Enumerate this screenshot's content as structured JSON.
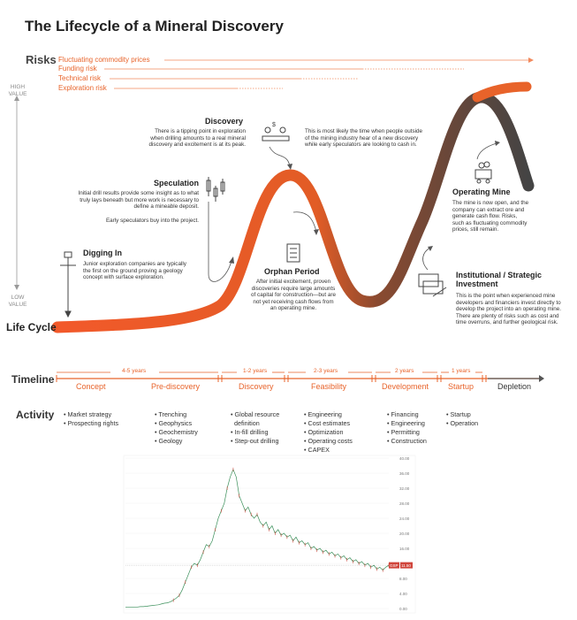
{
  "title": "The Lifecycle of a Mineral Discovery",
  "risks": {
    "label": "Risks",
    "items": [
      "Fluctuating commodity prices",
      "Funding risk",
      "Technical risk",
      "Exploration risk"
    ]
  },
  "axis": {
    "high_line1": "HIGH",
    "high_line2": "VALUE",
    "low_line1": "LOW",
    "low_line2": "VALUE"
  },
  "lifecycle_label": "Life Cycle",
  "stages": {
    "digging_in": {
      "title": "Digging In",
      "body": "Junior exploration companies are typically the first on the ground proving a geology concept with surface exploration."
    },
    "speculation": {
      "title": "Speculation",
      "body1": "Initial drill results provide some insight as to what truly lays beneath but more work is necessary to define a mineable deposit.",
      "body2": "Early speculators buy into the project."
    },
    "discovery": {
      "title": "Discovery",
      "body": "There is a tipping point in exploration when drilling amounts to a real mineral discovery and excitement is at its peak.",
      "side": "This is most likely the time when people outside of the mining industry hear of a new discovery while early speculators are looking to cash in."
    },
    "orphan": {
      "title": "Orphan Period",
      "body": "After initial excitement, proven discoveries require large amounts of capital for construction—but are not yet receiving cash flows from an operating mine."
    },
    "operating": {
      "title": "Operating Mine",
      "body": "The mine is now open, and the company can extract ore and generate cash flow. Risks, such as fluctuating commodity prices, still remain."
    },
    "institutional": {
      "title": "Institutional / Strategic Investment",
      "body": "This is the point when experienced mine developers and financiers invest directly to develop the project into an operating mine. There are plenty of risks such as cost and time overruns, and further geological risk."
    }
  },
  "timeline": {
    "label": "Timeline",
    "phases": [
      "Concept",
      "Pre-discovery",
      "Discovery",
      "Feasibility",
      "Development",
      "Startup",
      "Depletion"
    ],
    "durations": [
      "4-5 years",
      "1-2 years",
      "2-3 years",
      "2 years",
      "1 years"
    ]
  },
  "activity": {
    "label": "Activity",
    "columns": [
      [
        "Market strategy",
        "Prospecting rights"
      ],
      [
        "Trenching",
        "Geophysics",
        "Geochemistry",
        "Geology"
      ],
      [
        "Global resource",
        "definition",
        "In-fill drilling",
        "Step-out drilling"
      ],
      [
        "Engineering",
        "Cost estimates",
        "Optimization",
        "Operating costs",
        "CAPEX"
      ],
      [
        "Financing",
        "Engineering",
        "Permitting",
        "Construction"
      ],
      [
        "Startup",
        "Operation"
      ]
    ]
  },
  "price_chart": {
    "y_ticks": [
      "40.00",
      "36.00",
      "32.00",
      "28.00",
      "24.00",
      "20.00",
      "16.00",
      "12.00",
      "8.00",
      "4.00",
      "0.00"
    ],
    "last_price": "11.50",
    "last_tag": "GSP"
  },
  "chart_data": {
    "type": "line",
    "ylim": [
      0,
      40
    ],
    "yticks": [
      0,
      4,
      8,
      12,
      16,
      20,
      24,
      28,
      32,
      36,
      40
    ],
    "series": [
      {
        "values": [
          0.3,
          0.3,
          0.3,
          0.4,
          0.4,
          0.5,
          0.5,
          0.6,
          0.7,
          0.8,
          0.9,
          1.0,
          1.2,
          1.4,
          1.5,
          1.8,
          2.2,
          2.8,
          3.5,
          5,
          7,
          9,
          11,
          12,
          11.5,
          13,
          15,
          17,
          16.5,
          18,
          21,
          24,
          26,
          28,
          32,
          35,
          37,
          35,
          30,
          28,
          26,
          27,
          25,
          24,
          25,
          23,
          22,
          23,
          21,
          22,
          20,
          21,
          19.5,
          20,
          19,
          19.5,
          18,
          19,
          17.5,
          18,
          17,
          17.5,
          16,
          16.5,
          15.5,
          16,
          15,
          15.5,
          14.5,
          15,
          14,
          14.5,
          13.5,
          14,
          13,
          13.5,
          12.5,
          13,
          12,
          12.5,
          11.5,
          12,
          11,
          11.5,
          10.5,
          11,
          10.2,
          11,
          11.5
        ]
      }
    ],
    "last_value": 11.5
  }
}
